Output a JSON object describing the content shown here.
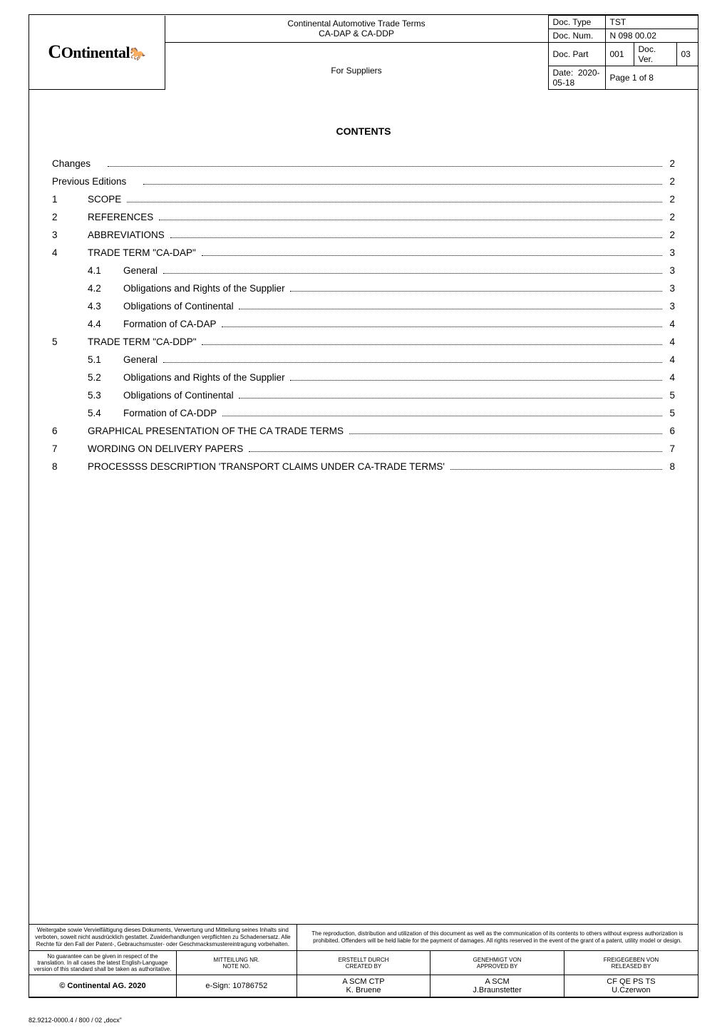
{
  "header": {
    "logo_text": "Ontinental",
    "title_line1": "Continental Automotive Trade Terms",
    "title_line2": "CA-DAP & CA-DDP",
    "title_line3": "For Suppliers",
    "meta": {
      "doc_type_label": "Doc. Type",
      "doc_type": "TST",
      "doc_num_label": "Doc. Num.",
      "doc_num": "N 098 00.02",
      "doc_part_label": "Doc. Part",
      "doc_part": "001",
      "doc_ver_label": "Doc. Ver.",
      "doc_ver": "03",
      "date_label": "Date:",
      "date": "2020-05-18",
      "page_label": "Page 1 of 8"
    }
  },
  "contents": {
    "heading": "CONTENTS",
    "rows": [
      {
        "num": "",
        "label": "Changes",
        "page": "2",
        "sub": false
      },
      {
        "num": "",
        "label": "Previous Editions",
        "page": "2",
        "sub": false
      },
      {
        "num": "1",
        "label": "SCOPE",
        "page": "2",
        "sub": false
      },
      {
        "num": "2",
        "label": "REFERENCES",
        "page": "2",
        "sub": false
      },
      {
        "num": "3",
        "label": "ABBREVIATIONS",
        "page": "2",
        "sub": false
      },
      {
        "num": "4",
        "label": "TRADE TERM \"CA-DAP\"",
        "page": "3",
        "sub": false
      },
      {
        "num": "4.1",
        "label": "General",
        "page": "3",
        "sub": true
      },
      {
        "num": "4.2",
        "label": "Obligations and Rights of the Supplier",
        "page": "3",
        "sub": true
      },
      {
        "num": "4.3",
        "label": "Obligations of Continental",
        "page": "3",
        "sub": true
      },
      {
        "num": "4.4",
        "label": "Formation of CA-DAP",
        "page": "4",
        "sub": true
      },
      {
        "num": "5",
        "label": "TRADE TERM \"CA-DDP\"",
        "page": "4",
        "sub": false
      },
      {
        "num": "5.1",
        "label": "General",
        "page": "4",
        "sub": true
      },
      {
        "num": "5.2",
        "label": "Obligations and Rights of the Supplier",
        "page": "4",
        "sub": true
      },
      {
        "num": "5.3",
        "label": "Obligations of Continental",
        "page": "5",
        "sub": true
      },
      {
        "num": "5.4",
        "label": "Formation of CA-DDP",
        "page": "5",
        "sub": true
      },
      {
        "num": "6",
        "label": "GRAPHICAL PRESENTATION OF THE CA TRADE TERMS",
        "page": "6",
        "sub": false
      },
      {
        "num": "7",
        "label": "WORDING ON DELIVERY PAPERS",
        "page": "7",
        "sub": false
      },
      {
        "num": "8",
        "label": "PROCESSSS DESCRIPTION 'TRANSPORT CLAIMS UNDER CA-TRADE TERMS'",
        "page": "8",
        "sub": false
      }
    ]
  },
  "footer": {
    "disclaim_de": "Weitergabe sowie Vervielfältigung dieses Dokuments, Verwertung und Mitteilung seines Inhalts sind verboten, soweit nicht ausdrücklich gestattet. Zuwiderhandlungen verpflichten zu Schadenersatz. Alle Rechte für den Fall der Patent-, Gebrauchsmuster- oder Geschmacksmustereintragung vorbehalten.",
    "disclaim_en": "The reproduction, distribution and utilization of this document as well as the communication of its contents to others without express authorization is prohibited. Offenders will be held liable for the payment of damages. All rights reserved in the event of the grant of a patent, utility model or design.",
    "note_small": "No guarantee can be given in respect of the translation. In all cases the latest English-Language version of this standard shall be taken as authoritative.",
    "cols": {
      "mitteilung_label": "MITTEILUNG NR.\nNOTE NO.",
      "erstellt_label": "ERSTELLT DURCH\nCREATED BY",
      "genehmigt_label": "GENEHMIGT VON\nAPPROVED BY",
      "freigegeben_label": "FREIGEGEBEN VON\nRELEASED BY"
    },
    "vals": {
      "copyright": "© Continental AG. 2020",
      "esign": "e-Sign: 10786752",
      "created": "A SCM CTP\nK. Bruene",
      "approved": "A SCM\nJ.Braunstetter",
      "released": "CF QE PS TS\nU.Czerwon"
    }
  },
  "docx_note": "82.9212-0000.4 / 800 / 02 „docx\"",
  "colors": {
    "border": "#000000",
    "bg": "#ffffff",
    "text": "#000000"
  }
}
